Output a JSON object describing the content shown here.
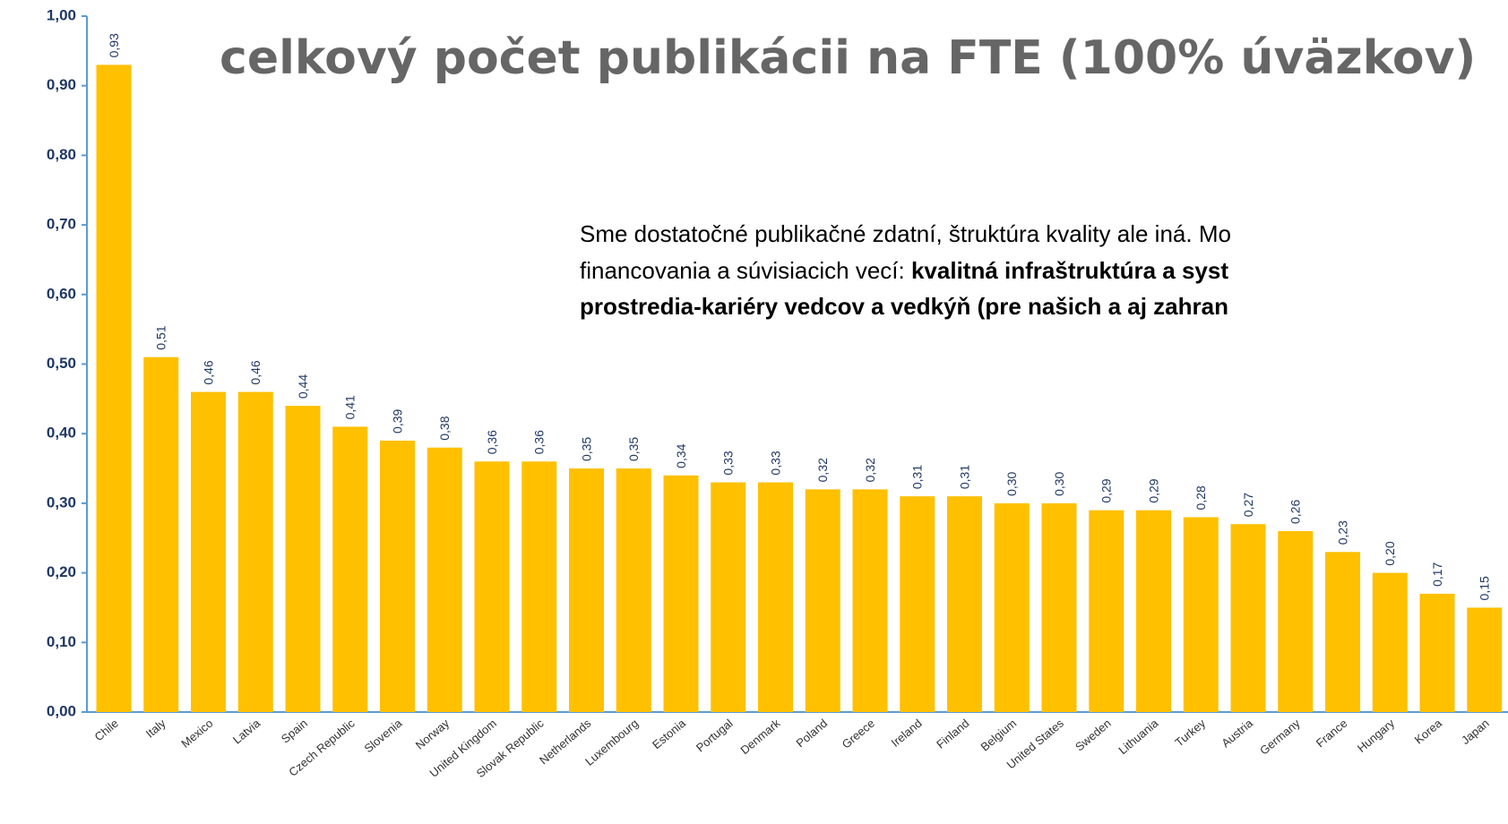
{
  "chart_data": {
    "type": "bar",
    "title": "celkový počet publikácii na FTE (100% úväzkov)",
    "annotations": [
      "Sme dostatočné publikačné zdatní, štruktúra kvality ale iná. Mo",
      "financovania a súvisiacich vecí: ",
      "kvalitná infraštruktúra a syst",
      "prostredia-kariéry vedcov a vedkýň (pre našich a aj zahran"
    ],
    "categories": [
      "Chile",
      "Italy",
      "Mexico",
      "Latvia",
      "Spain",
      "Czech Republic",
      "Slovenia",
      "Norway",
      "United Kingdom",
      "Slovak Republic",
      "Netherlands",
      "Luxembourg",
      "Estonia",
      "Portugal",
      "Denmark",
      "Poland",
      "Greece",
      "Ireland",
      "Finland",
      "Belgium",
      "United States",
      "Sweden",
      "Lithuania",
      "Turkey",
      "Austria",
      "Germany",
      "France",
      "Hungary",
      "Korea",
      "Japan"
    ],
    "values": [
      0.93,
      0.51,
      0.46,
      0.46,
      0.44,
      0.41,
      0.39,
      0.38,
      0.36,
      0.36,
      0.35,
      0.35,
      0.34,
      0.33,
      0.33,
      0.32,
      0.32,
      0.31,
      0.31,
      0.3,
      0.3,
      0.29,
      0.29,
      0.28,
      0.27,
      0.26,
      0.23,
      0.2,
      0.17,
      0.15
    ],
    "value_labels": [
      "0,93",
      "0,51",
      "0,46",
      "0,46",
      "0,44",
      "0,41",
      "0,39",
      "0,38",
      "0,36",
      "0,36",
      "0,35",
      "0,35",
      "0,34",
      "0,33",
      "0,33",
      "0,32",
      "0,32",
      "0,31",
      "0,31",
      "0,30",
      "0,30",
      "0,29",
      "0,29",
      "0,28",
      "0,27",
      "0,26",
      "0,23",
      "0,20",
      "0,17",
      "0,15"
    ],
    "color": "#ffc000",
    "ylim": [
      0,
      1
    ],
    "yticks": [
      {
        "value": 0,
        "label": "0,00"
      },
      {
        "value": 0.1,
        "label": "0,10"
      },
      {
        "value": 0.2,
        "label": "0,20"
      },
      {
        "value": 0.3,
        "label": "0,30"
      },
      {
        "value": 0.4,
        "label": "0,40"
      },
      {
        "value": 0.5,
        "label": "0,50"
      },
      {
        "value": 0.6,
        "label": "0,60"
      },
      {
        "value": 0.7,
        "label": "0,70"
      },
      {
        "value": 0.8,
        "label": "0,80"
      },
      {
        "value": 0.9,
        "label": "0,90"
      },
      {
        "value": 1,
        "label": "1,00"
      }
    ]
  }
}
